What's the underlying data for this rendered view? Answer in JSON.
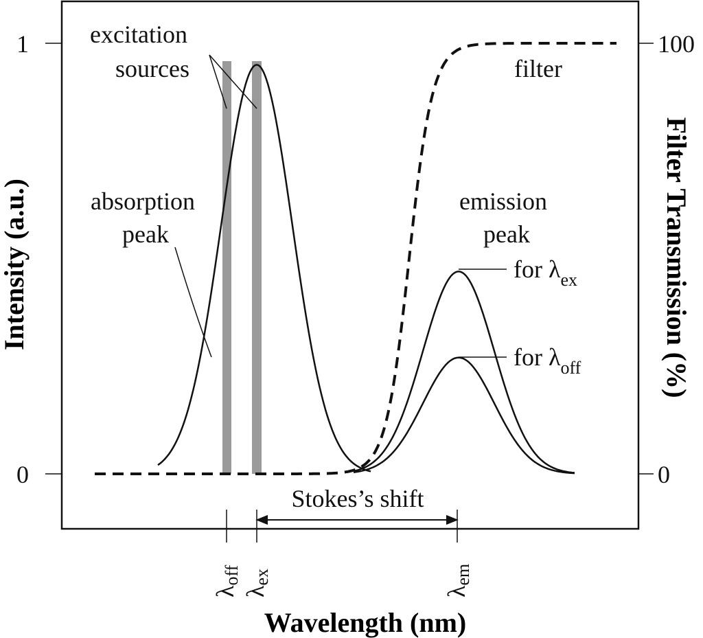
{
  "axes": {
    "left_label": "Intensity (a.u.)",
    "right_label": "Filter Transmission (%)",
    "x_label": "Wavelength (nm)",
    "left_ticks": [
      "0",
      "1"
    ],
    "right_ticks": [
      "0",
      "100"
    ]
  },
  "annotations": {
    "excitation_line1": "excitation",
    "excitation_line2": "sources",
    "absorption_line1": "absorption",
    "absorption_line2": "peak",
    "filter": "filter",
    "emission_line1": "emission",
    "emission_line2": "peak",
    "for_ex_prefix": "for ",
    "for_off_prefix": "for ",
    "stokes": "Stokes’s shift"
  },
  "wavelength_markers": {
    "lambda": "λ",
    "off_sub": "off",
    "ex_sub": "ex",
    "em_sub": "em"
  },
  "chart_data": {
    "type": "line",
    "x": [
      "λoff",
      "λex",
      "λem"
    ],
    "ylim": [
      0,
      1
    ],
    "y2lim": [
      0,
      100
    ],
    "series": [
      {
        "name": "absorption peak",
        "peak_intensity": 0.95
      },
      {
        "name": "emission peak for λex",
        "peak_intensity": 0.47
      },
      {
        "name": "emission peak for λoff",
        "peak_intensity": 0.27
      },
      {
        "name": "filter",
        "transmission_range": [
          0,
          100
        ]
      }
    ],
    "excitation_sources": [
      "λoff",
      "λex"
    ]
  },
  "colors": {
    "ink": "#111111",
    "excitation_bar": "#9a9a9a",
    "background": "#ffffff"
  }
}
